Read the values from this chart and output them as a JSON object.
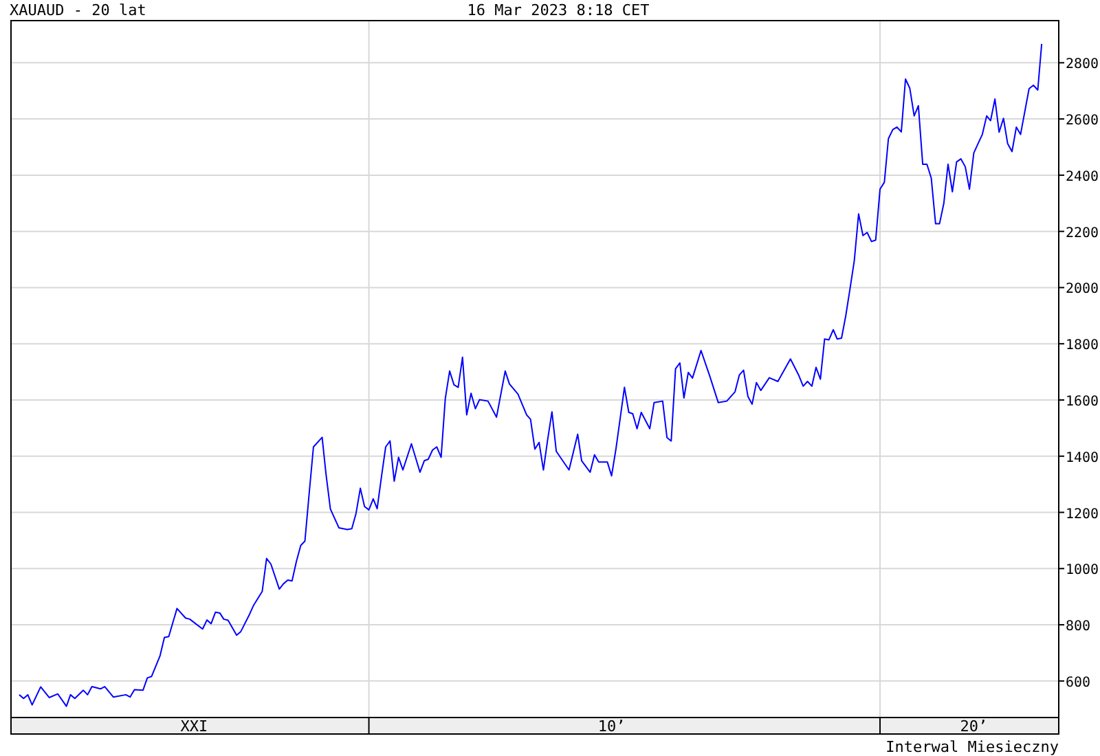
{
  "chart_data": {
    "type": "line",
    "title": "XAUAUD - 20 lat",
    "subtitle": "16 Mar 2023 8:18 CET",
    "annotations": [
      "Interwal Miesieczny"
    ],
    "x": [
      "2003-03",
      "2003-04",
      "2003-05",
      "2003-06",
      "2003-08",
      "2003-10",
      "2003-12",
      "2004-02",
      "2004-03",
      "2004-04",
      "2004-06",
      "2004-07",
      "2004-08",
      "2004-10",
      "2004-11",
      "2005-01",
      "2005-04",
      "2005-05",
      "2005-06",
      "2005-08",
      "2005-09",
      "2005-10",
      "2005-12",
      "2006-01",
      "2006-02",
      "2006-04",
      "2006-06",
      "2006-07",
      "2006-10",
      "2006-11",
      "2006-12",
      "2007-01",
      "2007-02",
      "2007-03",
      "2007-04",
      "2007-06",
      "2007-07",
      "2007-09",
      "2007-10",
      "2007-12",
      "2008-01",
      "2008-02",
      "2008-04",
      "2008-05",
      "2008-06",
      "2008-07",
      "2008-08",
      "2008-09",
      "2008-10",
      "2008-11",
      "2008-12",
      "2009-02",
      "2009-03",
      "2009-04",
      "2009-06",
      "2009-08",
      "2009-09",
      "2009-10",
      "2009-11",
      "2009-12",
      "2010-01",
      "2010-02",
      "2010-03",
      "2010-04",
      "2010-05",
      "2010-06",
      "2010-07",
      "2010-08",
      "2010-09",
      "2010-11",
      "2011-01",
      "2011-02",
      "2011-03",
      "2011-04",
      "2011-05",
      "2011-06",
      "2011-07",
      "2011-08",
      "2011-09",
      "2011-10",
      "2011-11",
      "2011-12",
      "2012-01",
      "2012-02",
      "2012-03",
      "2012-05",
      "2012-07",
      "2012-09",
      "2012-10",
      "2012-12",
      "2013-02",
      "2013-03",
      "2013-04",
      "2013-05",
      "2013-06",
      "2013-07",
      "2013-08",
      "2013-09",
      "2013-12",
      "2014-02",
      "2014-03",
      "2014-05",
      "2014-06",
      "2014-07",
      "2014-09",
      "2014-10",
      "2014-11",
      "2015-01",
      "2015-02",
      "2015-03",
      "2015-04",
      "2015-05",
      "2015-07",
      "2015-08",
      "2015-10",
      "2015-11",
      "2015-12",
      "2016-01",
      "2016-02",
      "2016-03",
      "2016-04",
      "2016-05",
      "2016-07",
      "2016-09",
      "2016-11",
      "2017-01",
      "2017-03",
      "2017-04",
      "2017-05",
      "2017-06",
      "2017-07",
      "2017-08",
      "2017-09",
      "2017-11",
      "2018-01",
      "2018-04",
      "2018-06",
      "2018-07",
      "2018-08",
      "2018-09",
      "2018-10",
      "2018-11",
      "2018-12",
      "2019-01",
      "2019-02",
      "2019-03",
      "2019-04",
      "2019-05",
      "2019-06",
      "2019-07",
      "2019-08",
      "2019-09",
      "2019-10",
      "2019-11",
      "2019-12",
      "2020-01",
      "2020-02",
      "2020-03",
      "2020-04",
      "2020-05",
      "2020-06",
      "2020-07",
      "2020-08",
      "2020-09",
      "2020-10",
      "2020-11",
      "2020-12",
      "2021-01",
      "2021-02",
      "2021-03",
      "2021-04",
      "2021-05",
      "2021-06",
      "2021-07",
      "2021-08",
      "2021-09",
      "2021-10",
      "2021-11",
      "2021-12",
      "2022-01",
      "2022-02",
      "2022-03",
      "2022-04",
      "2022-05",
      "2022-06",
      "2022-07",
      "2022-08",
      "2022-09",
      "2022-10",
      "2022-12",
      "2023-01",
      "2023-02",
      "2023-03"
    ],
    "series": [
      {
        "color": "#0000ff",
        "values": [
          551,
          538,
          551,
          515,
          579,
          541,
          554,
          510,
          551,
          538,
          567,
          551,
          580,
          572,
          580,
          543,
          551,
          543,
          569,
          567,
          611,
          616,
          690,
          755,
          758,
          858,
          824,
          820,
          785,
          817,
          804,
          845,
          842,
          820,
          816,
          763,
          776,
          837,
          870,
          919,
          1036,
          1016,
          927,
          946,
          959,
          956,
          1025,
          1082,
          1098,
          1271,
          1433,
          1467,
          1335,
          1212,
          1145,
          1139,
          1142,
          1196,
          1286,
          1221,
          1209,
          1248,
          1213,
          1327,
          1433,
          1454,
          1311,
          1396,
          1351,
          1444,
          1343,
          1384,
          1389,
          1422,
          1433,
          1396,
          1605,
          1703,
          1654,
          1645,
          1752,
          1547,
          1624,
          1569,
          1601,
          1596,
          1539,
          1703,
          1657,
          1621,
          1547,
          1531,
          1425,
          1449,
          1351,
          1458,
          1558,
          1417,
          1351,
          1478,
          1384,
          1343,
          1405,
          1379,
          1379,
          1330,
          1425,
          1645,
          1556,
          1551,
          1498,
          1556,
          1498,
          1591,
          1596,
          1466,
          1454,
          1711,
          1732,
          1607,
          1698,
          1678,
          1776,
          1686,
          1591,
          1596,
          1629,
          1689,
          1706,
          1613,
          1585,
          1662,
          1634,
          1679,
          1666,
          1746,
          1686,
          1649,
          1666,
          1649,
          1716,
          1674,
          1817,
          1814,
          1850,
          1817,
          1820,
          1899,
          1997,
          2095,
          2262,
          2185,
          2196,
          2164,
          2169,
          2350,
          2375,
          2530,
          2562,
          2571,
          2554,
          2742,
          2709,
          2611,
          2647,
          2439,
          2439,
          2390,
          2227,
          2227,
          2300,
          2439,
          2341,
          2447,
          2458,
          2430,
          2350,
          2479,
          2512,
          2545,
          2611,
          2594,
          2671,
          2553,
          2602,
          2512,
          2484,
          2571,
          2545,
          2708,
          2720,
          2703,
          2867
        ]
      }
    ],
    "xlim": [
      "2003-01",
      "2023-07"
    ],
    "xticks": [
      {
        "value": "2006-08",
        "label": "XXI"
      },
      {
        "value": "2010-01",
        "label": null
      },
      {
        "value": "2014-10",
        "label": "10’"
      },
      {
        "value": "2020-01",
        "label": null
      },
      {
        "value": "2021-11",
        "label": "20’"
      }
    ],
    "ylim": [
      470,
      2950
    ],
    "yticks": [
      600,
      800,
      1000,
      1200,
      1400,
      1600,
      1800,
      2000,
      2200,
      2400,
      2600,
      2800
    ],
    "grid": true,
    "marker": "none",
    "line_style": "solid"
  }
}
